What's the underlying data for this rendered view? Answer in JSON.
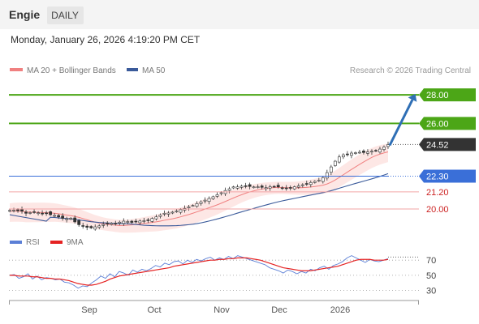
{
  "header": {
    "title": "Engie",
    "period_badge": "DAILY",
    "datetime": "Monday, January 26, 2026 4:19:20 PM CET"
  },
  "legend": {
    "ma20_label": "MA 20 + Bollinger Bands",
    "ma50_label": "MA 50",
    "credit": "Research © 2026 Trading Central"
  },
  "colors": {
    "ma20": "#f08080",
    "ma50": "#3a5a9a",
    "bollinger_fill": "#fde4e2",
    "resistance": "#4ca617",
    "pivot": "#3a6fd8",
    "support": "#f2a6a6",
    "support_text": "#cc2222",
    "last_price": "#333333",
    "rsi": "#5b7fd6",
    "rsi_ma": "#e52222",
    "candle_up": "#ffffff",
    "candle_down": "#333333",
    "arrow": "#2f6fb5"
  },
  "chart_data": [
    {
      "type": "candlestick",
      "instrument": "Engie",
      "interval": "daily",
      "x": {
        "ticks": [
          "Sep",
          "Oct",
          "Nov",
          "Dec",
          "2026"
        ]
      },
      "y": {
        "range": [
          18.3,
          29.2
        ]
      },
      "levels": [
        {
          "value": 28.0,
          "label": "28.00",
          "kind": "resistance"
        },
        {
          "value": 26.0,
          "label": "26.00",
          "kind": "resistance"
        },
        {
          "value": 24.52,
          "label": "24.52",
          "kind": "last"
        },
        {
          "value": 22.3,
          "label": "22.30",
          "kind": "pivot"
        },
        {
          "value": 21.2,
          "label": "21.20",
          "kind": "support"
        },
        {
          "value": 20.0,
          "label": "20.00",
          "kind": "support"
        }
      ],
      "close_series": [
        19.9,
        19.92,
        19.88,
        19.85,
        19.7,
        19.75,
        19.78,
        19.74,
        19.7,
        19.72,
        19.6,
        19.55,
        19.45,
        19.35,
        19.32,
        19.35,
        19.1,
        18.9,
        18.8,
        18.72,
        18.68,
        18.75,
        18.82,
        18.92,
        18.98,
        19.0,
        18.95,
        19.08,
        19.15,
        19.12,
        19.06,
        19.1,
        19.16,
        19.18,
        19.22,
        19.34,
        19.45,
        19.58,
        19.7,
        19.72,
        19.78,
        19.86,
        19.95,
        20.05,
        20.15,
        20.25,
        20.38,
        20.5,
        20.62,
        20.74,
        20.86,
        21.0,
        21.14,
        21.3,
        21.42,
        21.55,
        21.55,
        21.6,
        21.62,
        21.58,
        21.55,
        21.56,
        21.52,
        21.5,
        21.56,
        21.58,
        21.55,
        21.48,
        21.45,
        21.5,
        21.56,
        21.62,
        21.7,
        21.78,
        21.86,
        21.94,
        22.02,
        22.2,
        22.55,
        22.95,
        23.35,
        23.65,
        23.8,
        23.85,
        23.92,
        23.95,
        23.98,
        23.96,
        24.0,
        24.05,
        24.08,
        24.2,
        24.35,
        24.52
      ],
      "ma20_range": [
        19.05,
        24.3
      ],
      "ma50_range": [
        18.8,
        22.35
      ],
      "arrow": {
        "from": 24.52,
        "to": 28.0
      }
    },
    {
      "type": "line",
      "legend": [
        "RSI",
        "9MA"
      ],
      "y": {
        "range": [
          22,
          82
        ],
        "ticks": [
          30,
          50,
          70
        ]
      },
      "series": [
        {
          "name": "RSI",
          "values": [
            50,
            51,
            46,
            48,
            52,
            45,
            49,
            44,
            47,
            46,
            44,
            45,
            41,
            40,
            37,
            33,
            36,
            35,
            40,
            44,
            49,
            46,
            52,
            48,
            55,
            53,
            50,
            57,
            54,
            58,
            56,
            59,
            63,
            61,
            66,
            64,
            68,
            69,
            65,
            70,
            67,
            71,
            69,
            72,
            74,
            70,
            73,
            71,
            75,
            72,
            76,
            74,
            72,
            70,
            68,
            66,
            64,
            60,
            58,
            56,
            53,
            57,
            55,
            52,
            55,
            53,
            58,
            56,
            60,
            62,
            58,
            63,
            65,
            68,
            73,
            76,
            73,
            70,
            67,
            71,
            69,
            68,
            70,
            72
          ]
        },
        {
          "name": "9MA",
          "values": [
            50,
            50,
            49,
            49,
            49,
            48,
            48,
            47,
            46,
            46,
            45,
            45,
            44,
            43,
            41,
            39,
            38,
            37,
            37,
            38,
            40,
            42,
            45,
            47,
            49,
            50,
            51,
            52,
            53,
            54,
            55,
            56,
            57,
            58,
            59,
            60,
            62,
            63,
            64,
            65,
            66,
            67,
            68,
            69,
            70,
            70,
            71,
            71,
            72,
            72,
            73,
            73,
            73,
            72,
            71,
            70,
            68,
            66,
            64,
            62,
            60,
            59,
            58,
            57,
            56,
            56,
            56,
            57,
            58,
            59,
            60,
            61,
            62,
            64,
            66,
            68,
            70,
            71,
            71,
            71,
            70,
            70,
            70,
            71
          ]
        }
      ]
    }
  ]
}
